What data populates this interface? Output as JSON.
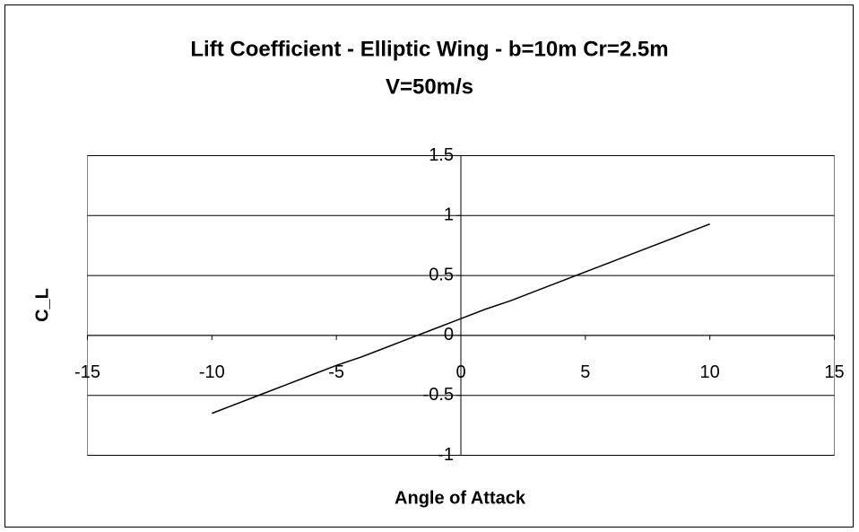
{
  "chart_data": {
    "type": "line",
    "title": [
      "Lift Coefficient - Elliptic Wing - b=10m Cr=2.5m",
      "V=50m/s"
    ],
    "xlabel": "Angle of Attack",
    "ylabel": "C_L",
    "x": [
      -10,
      -9,
      -8,
      -7,
      -6,
      -5,
      -4,
      -3,
      -2,
      -1,
      0,
      1,
      2,
      3,
      4,
      5,
      6,
      7,
      8,
      9,
      10
    ],
    "series": [
      {
        "color": "#000000",
        "values": [
          -0.65,
          -0.57,
          -0.49,
          -0.41,
          -0.33,
          -0.25,
          -0.18,
          -0.1,
          -0.02,
          0.06,
          0.14,
          0.22,
          0.29,
          0.37,
          0.45,
          0.53,
          0.61,
          0.69,
          0.77,
          0.85,
          0.93
        ]
      }
    ],
    "xlim": [
      -15,
      15
    ],
    "xticks": [
      -15,
      -10,
      -5,
      0,
      5,
      10,
      15
    ],
    "ylim": [
      -1,
      1.5
    ],
    "yticks": [
      -1,
      -0.5,
      0,
      0.5,
      1,
      1.5
    ],
    "grid": true
  }
}
